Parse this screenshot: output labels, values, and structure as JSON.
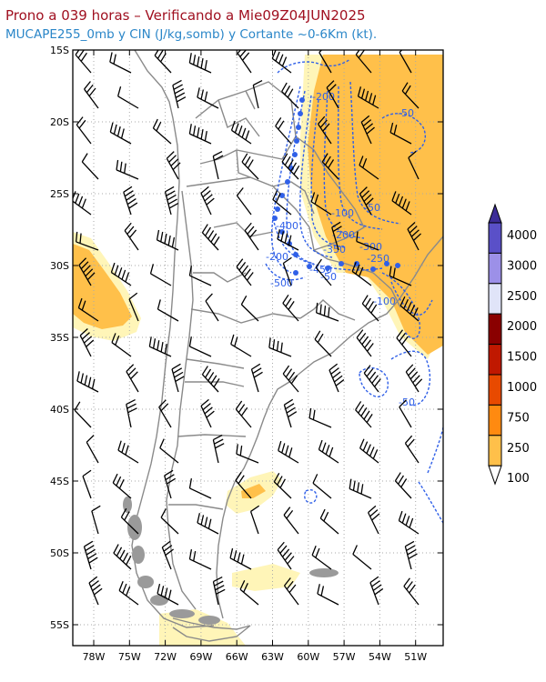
{
  "title_line1": "Prono a 039 horas – Verificando a Mie09Z04JUN2025",
  "title_line2": "MUCAPE255_0mb y CIN (J/kg,somb) y Cortante ~0-6Km (kt).",
  "axes": {
    "lat_labels": [
      "15S",
      "20S",
      "25S",
      "30S",
      "35S",
      "40S",
      "45S",
      "50S",
      "55S"
    ],
    "lon_labels": [
      "78W",
      "75W",
      "72W",
      "69W",
      "66W",
      "63W",
      "60W",
      "57W",
      "54W",
      "51W"
    ]
  },
  "contour_labels": [
    {
      "text": "-200"
    },
    {
      "text": "-50"
    },
    {
      "text": "-50"
    },
    {
      "text": "-100"
    },
    {
      "text": "-400"
    },
    {
      "text": "-200"
    },
    {
      "text": "-350"
    },
    {
      "text": "-300"
    },
    {
      "text": "-250"
    },
    {
      "text": "-200"
    },
    {
      "text": "-450"
    },
    {
      "text": "-50"
    },
    {
      "text": "-500"
    },
    {
      "text": "-100"
    },
    {
      "text": "-50"
    }
  ],
  "colorbar": {
    "levels": [
      "100",
      "250",
      "750",
      "1000",
      "1500",
      "2000",
      "2500",
      "3000",
      "4000"
    ],
    "colors": [
      "#fff5b8",
      "#ffc04a",
      "#ff8a10",
      "#e84a00",
      "#c01800",
      "#8a0000",
      "#e0e4f8",
      "#9c90e8",
      "#5a50c8",
      "#3c2c98"
    ],
    "under_color": "#ffffff"
  },
  "colors": {
    "title1": "#a01020",
    "title2": "#2a86c8",
    "cin_contours": "#3060e8",
    "borders": "#8a8a8a"
  }
}
